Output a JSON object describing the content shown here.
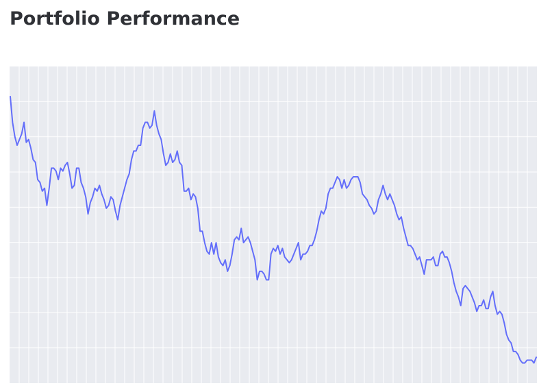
{
  "page": {
    "title": "Portfolio Performance"
  },
  "colors": {
    "plot_background": "#e9ebf0",
    "grid": "#ffffff",
    "line": "#636efa"
  },
  "chart_data": {
    "type": "line",
    "title": "Portfolio Performance",
    "xlabel": "",
    "ylabel": "",
    "grid": true,
    "xlim": [
      0,
      196
    ],
    "ylim": [
      0,
      100
    ],
    "y": [
      95,
      86,
      81,
      78,
      80,
      82,
      86,
      79,
      80,
      77,
      73,
      72,
      66,
      65,
      62,
      63,
      57,
      63,
      70,
      70,
      69,
      66,
      70,
      69,
      71,
      72,
      68,
      63,
      64,
      70,
      70,
      65,
      63,
      60,
      54,
      58,
      60,
      63,
      62,
      64,
      61,
      59,
      56,
      57,
      60,
      59,
      55,
      52,
      57,
      60,
      63,
      66,
      68,
      73,
      76,
      76,
      78,
      78,
      84,
      86,
      86,
      84,
      85,
      90,
      85,
      82,
      80,
      75,
      71,
      72,
      75,
      72,
      73,
      76,
      72,
      71,
      62,
      62,
      63,
      59,
      61,
      60,
      56,
      48,
      48,
      44,
      41,
      40,
      44,
      40,
      44,
      39,
      37,
      36,
      38,
      34,
      36,
      40,
      45,
      46,
      45,
      49,
      44,
      45,
      46,
      44,
      41,
      38,
      31,
      34,
      34,
      33,
      31,
      31,
      40,
      42,
      41,
      43,
      40,
      42,
      39,
      38,
      37,
      38,
      40,
      42,
      44,
      38,
      40,
      40,
      41,
      43,
      43,
      45,
      48,
      52,
      55,
      54,
      56,
      61,
      63,
      63,
      65,
      67,
      66,
      63,
      66,
      63,
      64,
      66,
      67,
      67,
      67,
      65,
      61,
      60,
      59,
      57,
      56,
      54,
      55,
      59,
      61,
      64,
      61,
      59,
      61,
      59,
      57,
      54,
      52,
      53,
      49,
      46,
      43,
      43,
      42,
      40,
      38,
      39,
      36,
      33,
      38,
      38,
      38,
      39,
      36,
      36,
      40,
      41,
      39,
      39,
      37,
      34,
      30,
      27,
      25,
      22,
      28,
      29,
      28,
      27,
      25,
      23,
      20,
      22,
      22,
      24,
      21,
      21,
      25,
      27,
      22,
      19,
      20,
      19,
      16,
      12,
      10,
      9,
      6,
      6,
      5,
      3,
      2,
      2,
      3,
      3,
      3,
      2,
      4
    ]
  }
}
